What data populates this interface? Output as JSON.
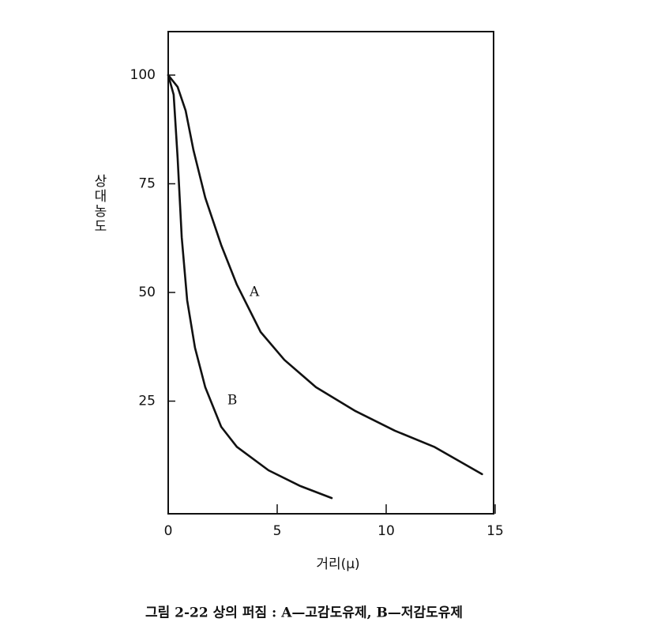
{
  "chart_data": {
    "type": "line",
    "y_label": "상대농도",
    "x_label": "거리(μ)",
    "caption": "그림 2-22  상의 퍼짐 : A—고감도유제,  B—저감도유제",
    "xlim": [
      0,
      15
    ],
    "ylim": [
      0,
      110
    ],
    "xticks": [
      0,
      5,
      10,
      15
    ],
    "yticks": [
      25,
      50,
      75,
      100
    ],
    "series": [
      {
        "name": "A",
        "color": "#111111",
        "x": [
          0,
          0.43,
          0.8,
          1.16,
          1.7,
          2.43,
          3.15,
          4.24,
          5.33,
          6.78,
          8.59,
          10.4,
          12.2,
          14.4
        ],
        "values": [
          100,
          97.3,
          91.8,
          82.7,
          71.8,
          60.9,
          51.8,
          40.9,
          34.5,
          28.2,
          22.7,
          18.2,
          14.5,
          8.2
        ]
      },
      {
        "name": "B",
        "color": "#111111",
        "x": [
          0,
          0.25,
          0.43,
          0.62,
          0.87,
          1.23,
          1.7,
          2.43,
          3.15,
          4.6,
          6.05,
          7.5
        ],
        "values": [
          100,
          95.5,
          81,
          62.7,
          48.2,
          37.3,
          28.2,
          19.1,
          14.5,
          9.1,
          5.5,
          2.7
        ]
      }
    ]
  }
}
